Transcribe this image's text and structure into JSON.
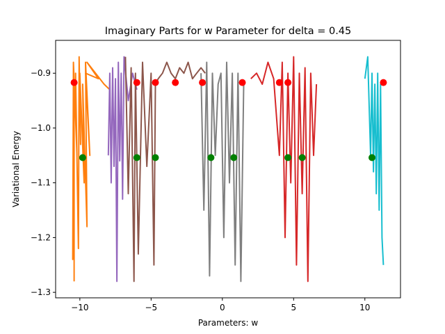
{
  "chart_data": {
    "type": "line",
    "title": "Imaginary Parts for w Parameter for delta = 0.45",
    "xlabel": "Parameters: w",
    "ylabel": "Variational Energy",
    "xlim": [
      -11.7,
      12.5
    ],
    "ylim": [
      -1.31,
      -0.84
    ],
    "x_ticks": [
      -10,
      -5,
      0,
      5,
      10
    ],
    "y_ticks": [
      -0.9,
      -1.0,
      -1.1,
      -1.2,
      -1.3
    ],
    "x_tick_labels": [
      "−10",
      "−5",
      "0",
      "5",
      "10"
    ],
    "y_tick_labels": [
      "−0.9",
      "−1.0",
      "−1.1",
      "−1.2",
      "−1.3"
    ],
    "grid": false,
    "series": [
      {
        "color": "#ff7f0e",
        "x": [
          -10.4,
          -10.4,
          -10.5,
          -10.45,
          -10.2,
          -10.3,
          -10.1,
          -10.05,
          -9.95,
          -10.0,
          -9.7,
          -9.8,
          -9.5,
          -9.6,
          -9.3,
          -9.6,
          -8.7,
          -9.5,
          -8.3,
          -7.9
        ],
        "y": [
          -1.28,
          -0.92,
          -1.24,
          -0.88,
          -1.05,
          -0.9,
          -1.22,
          -0.87,
          -1.03,
          -0.9,
          -1.1,
          -0.92,
          -1.18,
          -0.88,
          -1.05,
          -0.9,
          -0.91,
          -0.88,
          -0.92,
          -0.93
        ]
      },
      {
        "color": "#9467bd",
        "x": [
          -8.0,
          -7.9,
          -7.8,
          -7.7,
          -7.6,
          -7.5,
          -7.4,
          -7.3,
          -7.2,
          -7.1,
          -7.0,
          -6.9,
          -6.6,
          -6.3,
          -6.0
        ],
        "y": [
          -1.05,
          -0.9,
          -1.1,
          -0.89,
          -1.07,
          -0.91,
          -1.28,
          -0.88,
          -1.06,
          -0.9,
          -1.13,
          -0.87,
          -0.95,
          -0.9,
          -0.93
        ]
      },
      {
        "color": "#8c564b",
        "x": [
          -6.8,
          -6.6,
          -6.4,
          -6.2,
          -6.1,
          -5.9,
          -5.6,
          -5.3,
          -5.0,
          -4.8,
          -4.7,
          -4.5,
          -4.2,
          -3.9,
          -3.6,
          -3.3,
          -3.0,
          -2.7,
          -2.4,
          -2.1,
          -1.8,
          -1.5,
          -1.2
        ],
        "y": [
          -0.87,
          -1.12,
          -0.89,
          -1.28,
          -0.9,
          -1.23,
          -0.88,
          -1.07,
          -0.9,
          -1.25,
          -0.92,
          -0.91,
          -0.9,
          -0.88,
          -0.9,
          -0.91,
          -0.89,
          -0.9,
          -0.88,
          -0.91,
          -0.9,
          -0.89,
          -0.9
        ]
      },
      {
        "color": "#7f7f7f",
        "x": [
          -1.5,
          -1.3,
          -1.1,
          -0.9,
          -0.7,
          -0.5,
          -0.3,
          -0.1,
          0.1,
          0.3,
          0.5,
          0.7,
          0.9,
          1.1,
          1.3,
          1.5
        ],
        "y": [
          -0.9,
          -1.15,
          -0.88,
          -1.27,
          -0.9,
          -1.05,
          -0.92,
          -0.9,
          -1.2,
          -0.88,
          -1.1,
          -0.9,
          -1.25,
          -0.9,
          -1.28,
          -0.92
        ]
      },
      {
        "color": "#d62728",
        "x": [
          2.0,
          2.4,
          2.8,
          3.2,
          3.6,
          4.0,
          4.2,
          4.4,
          4.6,
          4.8,
          5.0,
          5.2,
          5.4,
          5.6,
          5.8,
          6.0,
          6.2,
          6.4,
          6.6
        ],
        "y": [
          -0.91,
          -0.9,
          -0.92,
          -0.88,
          -0.91,
          -1.05,
          -0.88,
          -1.2,
          -0.9,
          -1.1,
          -0.87,
          -1.25,
          -0.9,
          -1.12,
          -0.89,
          -1.28,
          -0.9,
          -1.05,
          -0.92
        ]
      },
      {
        "color": "#17becf",
        "x": [
          10.0,
          10.2,
          10.4,
          10.5,
          10.6,
          10.7,
          10.8,
          10.9,
          11.0,
          11.1,
          11.2,
          11.3
        ],
        "y": [
          -0.91,
          -0.87,
          -1.05,
          -0.9,
          -1.08,
          -0.92,
          -1.12,
          -0.9,
          -1.15,
          -0.92,
          -1.2,
          -1.25
        ]
      }
    ],
    "markers": [
      {
        "color": "#ff0000",
        "x": [
          -10.4,
          -6.0,
          -4.7,
          -3.3,
          -1.4,
          1.4,
          4.0,
          4.6,
          11.3
        ],
        "y": [
          -0.917,
          -0.917,
          -0.917,
          -0.917,
          -0.917,
          -0.917,
          -0.917,
          -0.917,
          -0.917
        ]
      },
      {
        "color": "#008000",
        "x": [
          -9.8,
          -6.0,
          -4.7,
          -0.8,
          0.8,
          4.6,
          5.6,
          10.5
        ],
        "y": [
          -1.054,
          -1.054,
          -1.054,
          -1.054,
          -1.054,
          -1.054,
          -1.054,
          -1.054
        ]
      }
    ]
  }
}
